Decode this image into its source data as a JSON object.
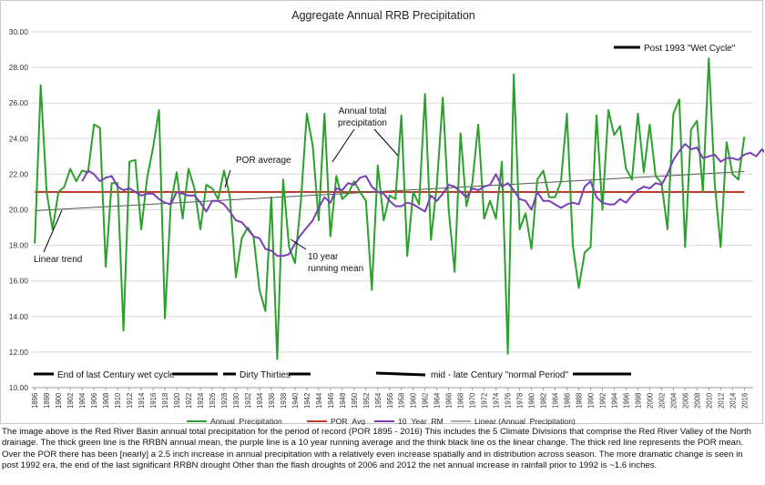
{
  "chart_data": {
    "type": "line",
    "title": "Aggregate Annual RRB Precipitation",
    "xlabel": "",
    "ylabel": "",
    "ylim": [
      10,
      30
    ],
    "yticks": [
      "10.00",
      "12.00",
      "14.00",
      "16.00",
      "18.00",
      "20.00",
      "22.00",
      "24.00",
      "26.00",
      "28.00",
      "30.00"
    ],
    "x_start": 1896,
    "x_end": 2017,
    "x_tick_step": 2,
    "grid": "horizontal",
    "legend_position": "bottom",
    "colors": {
      "annual": "#2ca02c",
      "por": "#c0392b",
      "rm": "#7b3fb5",
      "trend": "#555555"
    },
    "series": [
      {
        "name": "Annual_Precipitation",
        "values": [
          18.1,
          27.0,
          21.0,
          18.9,
          21.0,
          21.3,
          22.3,
          21.6,
          22.2,
          22.1,
          24.8,
          24.6,
          16.8,
          21.5,
          21.5,
          13.2,
          22.7,
          22.8,
          18.9,
          21.8,
          23.5,
          25.6,
          13.9,
          20.4,
          22.1,
          19.5,
          22.3,
          21.2,
          18.9,
          21.4,
          21.2,
          20.6,
          22.2,
          20.7,
          16.2,
          18.4,
          19.0,
          18.5,
          15.5,
          14.3,
          20.7,
          11.6,
          21.7,
          17.9,
          17.0,
          20.5,
          25.4,
          23.6,
          19.4,
          25.4,
          18.5,
          21.9,
          20.6,
          20.9,
          21.6,
          21.0,
          20.5,
          15.5,
          22.5,
          19.4,
          20.8,
          20.6,
          25.3,
          17.4,
          21.0,
          20.3,
          26.5,
          18.3,
          21.4,
          26.3,
          20.0,
          16.5,
          24.3,
          20.2,
          21.5,
          24.8,
          19.5,
          20.5,
          19.5,
          22.7,
          11.9,
          27.6,
          18.9,
          19.8,
          17.8,
          21.7,
          22.2,
          20.7,
          20.7,
          21.6,
          25.4,
          18.0,
          15.6,
          17.6,
          17.9,
          25.3,
          20.0,
          25.6,
          24.2,
          24.7,
          22.3,
          21.7,
          25.4,
          22.1,
          24.8,
          21.9,
          21.5,
          18.9,
          25.4,
          26.2,
          17.9,
          24.5,
          25.0,
          21.0,
          28.5,
          21.5,
          17.9,
          23.8,
          22.0,
          21.7,
          24.1
        ]
      },
      {
        "name": "POR_Avg",
        "values": [
          21.0
        ]
      },
      {
        "name": "10_Year_RM",
        "start_year": 1904,
        "values": [
          21.6,
          22.2,
          22.0,
          21.6,
          21.8,
          21.9,
          21.3,
          21.1,
          21.2,
          21.0,
          20.8,
          20.9,
          20.9,
          20.6,
          20.4,
          20.3,
          21.0,
          20.9,
          20.8,
          20.8,
          20.4,
          19.9,
          20.5,
          20.5,
          20.3,
          19.9,
          19.4,
          19.3,
          18.9,
          18.5,
          18.4,
          17.8,
          17.7,
          17.4,
          17.4,
          17.5,
          18.1,
          18.6,
          19.0,
          19.4,
          20.1,
          20.7,
          20.4,
          21.2,
          21.1,
          21.5,
          21.4,
          21.8,
          21.9,
          21.3,
          21.0,
          20.9,
          20.5,
          20.2,
          20.2,
          20.4,
          20.3,
          20.1,
          19.9,
          20.8,
          20.5,
          20.9,
          21.4,
          21.3,
          21.0,
          20.7,
          21.2,
          21.1,
          21.3,
          21.4,
          22.0,
          21.3,
          21.5,
          21.1,
          20.6,
          20.5,
          20.0,
          21.0,
          20.5,
          20.5,
          20.3,
          20.1,
          20.3,
          20.4,
          20.3,
          21.3,
          21.6,
          20.7,
          20.4,
          20.3,
          20.3,
          20.6,
          20.4,
          20.8,
          21.1,
          21.3,
          21.2,
          21.5,
          21.4,
          22.0,
          22.8,
          23.3,
          23.7,
          23.4,
          23.5,
          22.9,
          23.0,
          23.1,
          22.7,
          22.9,
          22.9,
          22.8,
          23.1,
          23.2,
          23.0,
          23.4,
          23.0,
          22.6,
          23.0
        ]
      },
      {
        "name": "Linear (Annual_Precipitation)",
        "from": [
          1896,
          19.95
        ],
        "to": [
          2016,
          22.15
        ]
      }
    ],
    "annotations": {
      "post_1993": "Post 1993 \"Wet Cycle\"",
      "annual_total_line1": "Annual total",
      "annual_total_line2": "precipitation",
      "por_average": "POR average",
      "linear_trend": "Linear trend",
      "ten_year_line1": "10 year",
      "ten_year_line2": "running mean",
      "end_last_century": "End of last Century wet cycle",
      "dirty_thirties": "Dirty Thirties",
      "mid_late_century": "mid - late Century \"normal Period\""
    }
  },
  "caption": "The image above is the Red River Basin annual total precipitation for the period of record (POR 1895 - 2016) This includes the 5 Climate Divisions that comprise the Red River Valley of the North drainage. The thick green line is the RRBN annual mean, the purple line is a 10 year running average and the think black line os the linear change. The thick red line represents the POR mean. Over the POR there has been [nearly] a 2.5 inch increase in annual precipitation with a relatively even increase spatially and in distribution across season. The more dramatic change is seen in post 1992 era, the end of the last significant RRBN drought Other than the flash droughts of 2006 and 2012 the net annual increase in rainfall prior to 1992 is ~1.6 inches."
}
